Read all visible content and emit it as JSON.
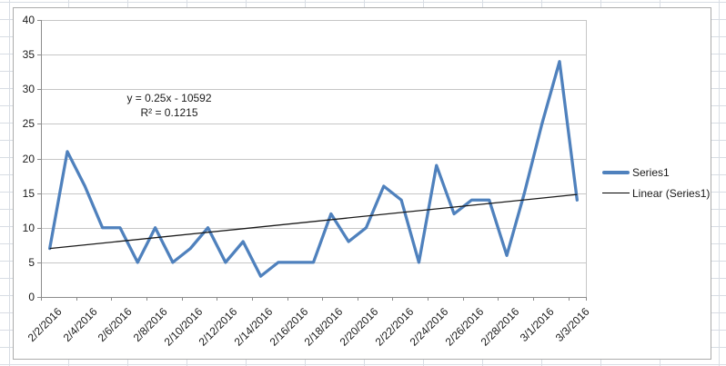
{
  "app": {
    "description": "Excel worksheet with embedded line chart"
  },
  "chart_data": {
    "type": "line",
    "title": "",
    "x": [
      "2/2/2016",
      "2/3/2016",
      "2/4/2016",
      "2/5/2016",
      "2/6/2016",
      "2/7/2016",
      "2/8/2016",
      "2/9/2016",
      "2/10/2016",
      "2/11/2016",
      "2/12/2016",
      "2/13/2016",
      "2/14/2016",
      "2/15/2016",
      "2/16/2016",
      "2/17/2016",
      "2/18/2016",
      "2/19/2016",
      "2/20/2016",
      "2/21/2016",
      "2/22/2016",
      "2/23/2016",
      "2/24/2016",
      "2/25/2016",
      "2/26/2016",
      "2/27/2016",
      "2/28/2016",
      "2/29/2016",
      "3/1/2016",
      "3/2/2016",
      "3/3/2016"
    ],
    "x_labels_visible": [
      "2/2/2016",
      "2/4/2016",
      "2/6/2016",
      "2/8/2016",
      "2/10/2016",
      "2/12/2016",
      "2/14/2016",
      "2/16/2016",
      "2/18/2016",
      "2/20/2016",
      "2/22/2016",
      "2/24/2016",
      "2/26/2016",
      "2/28/2016",
      "3/1/2016",
      "3/3/2016"
    ],
    "xlabel_interval": 2,
    "series": [
      {
        "name": "Series1",
        "color": "#4F81BD",
        "width": 3.3,
        "values": [
          7,
          21,
          16,
          10,
          10,
          5,
          10,
          5,
          7,
          10,
          5,
          8,
          3,
          5,
          5,
          5,
          12,
          8,
          10,
          16,
          14,
          5,
          19,
          12,
          14,
          14,
          6,
          15,
          25,
          34,
          14
        ]
      }
    ],
    "trendline": {
      "name": "Linear (Series1)",
      "color": "#1a1a1a",
      "equation": "y = 0.25x - 10592",
      "r_squared": "R² = 0.1215",
      "start_value": 7.0,
      "end_value": 14.8
    },
    "ylim": [
      0,
      40
    ],
    "yticks": [
      0,
      5,
      10,
      15,
      20,
      25,
      30,
      35,
      40
    ],
    "grid": true,
    "legend_position": "right",
    "gridline_color": "#c6c6c6",
    "axis_color": "#8c8c8c",
    "plot_right_border": true
  },
  "legend": {
    "items": [
      {
        "label": "Series1",
        "marker_color": "#4F81BD"
      },
      {
        "label": "Linear (Series1)",
        "marker_color": "#000000"
      }
    ]
  },
  "annotation": {
    "equation": "y = 0.25x - 10592",
    "r2": "R² = 0.1215"
  }
}
